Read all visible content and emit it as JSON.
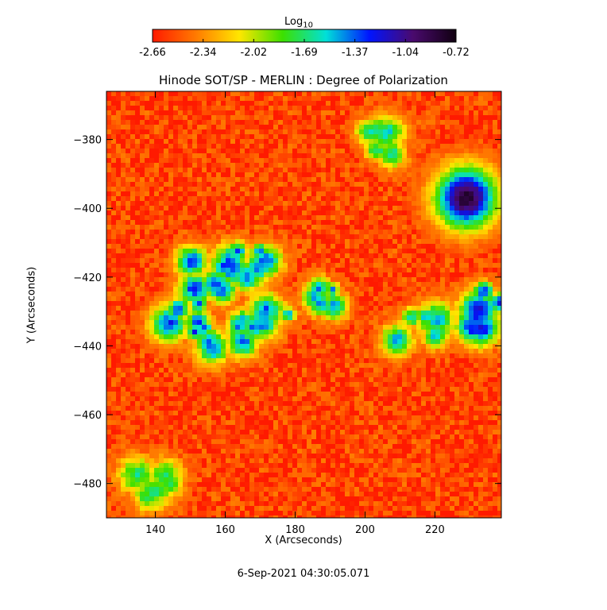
{
  "chart_data": {
    "type": "heatmap",
    "title": "Hinode SOT/SP - MERLIN : Degree of Polarization",
    "xlabel": "X (Arcseconds)",
    "ylabel": "Y (Arcseconds)",
    "xlim": [
      126,
      239
    ],
    "ylim": [
      -490,
      -366
    ],
    "x_ticks": [
      140,
      160,
      180,
      200,
      220
    ],
    "y_ticks": [
      -380,
      -400,
      -420,
      -440,
      -460,
      -480
    ],
    "colorbar": {
      "label": "Log",
      "label_sub": "10",
      "ticks": [
        "-2.66",
        "-2.34",
        "-2.02",
        "-1.69",
        "-1.37",
        "-1.04",
        "-0.72"
      ],
      "range": [
        -2.66,
        -0.72
      ],
      "colors": [
        "#ff1a00",
        "#ff7a00",
        "#ffe600",
        "#3ce000",
        "#00e0d8",
        "#0014ff",
        "#4a0a6e",
        "#100010"
      ]
    },
    "features": {
      "sunspot": {
        "x": 229,
        "y": -397,
        "radius": 6.5,
        "log_value": -0.8
      },
      "background_log_value": -2.55,
      "plage_regions": [
        {
          "x": 155,
          "y": -420,
          "log_value": -1.3
        },
        {
          "x": 147,
          "y": -432,
          "log_value": -1.3
        },
        {
          "x": 165,
          "y": -415,
          "log_value": -1.35
        },
        {
          "x": 172,
          "y": -430,
          "log_value": -1.4
        },
        {
          "x": 185,
          "y": -425,
          "log_value": -1.45
        },
        {
          "x": 160,
          "y": -440,
          "log_value": -1.4
        },
        {
          "x": 216,
          "y": -436,
          "log_value": -1.5
        },
        {
          "x": 205,
          "y": -380,
          "log_value": -1.6
        },
        {
          "x": 140,
          "y": -478,
          "log_value": -1.7
        },
        {
          "x": 236,
          "y": -430,
          "log_value": -1.2
        }
      ]
    }
  },
  "timestamp": "6-Sep-2021 04:30:05.071"
}
